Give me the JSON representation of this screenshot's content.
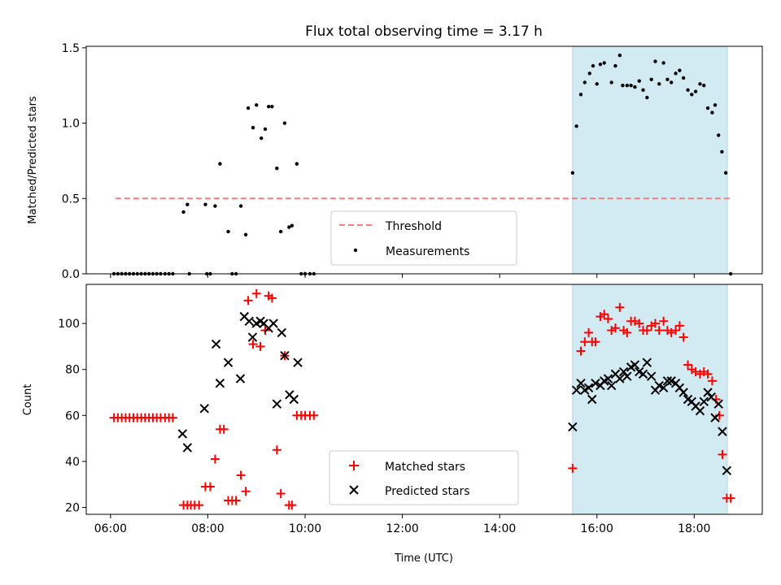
{
  "chart_data": [
    {
      "type": "scatter",
      "title": "Flux total observing time = 3.17 h",
      "xlabel": "",
      "ylabel": "Matched/Predicted stars",
      "x_unit": "hours UTC",
      "xlim": [
        5.5,
        19.4
      ],
      "ylim": [
        0,
        1.51
      ],
      "yticks": [
        "0.0",
        "0.5",
        "1.0",
        "1.5"
      ],
      "threshold": {
        "name": "Threshold",
        "value": 0.5,
        "x_range": [
          6.1,
          18.75
        ],
        "color": "#f08080"
      },
      "shaded_interval": {
        "x_range": [
          15.5,
          18.68
        ],
        "color": "#add8e6"
      },
      "legend_position": "lower center",
      "series": [
        {
          "name": "Measurements",
          "marker": "dot",
          "color": "#000000",
          "points": [
            [
              6.07,
              0.0
            ],
            [
              6.15,
              0.0
            ],
            [
              6.23,
              0.0
            ],
            [
              6.31,
              0.0
            ],
            [
              6.39,
              0.0
            ],
            [
              6.47,
              0.0
            ],
            [
              6.55,
              0.0
            ],
            [
              6.63,
              0.0
            ],
            [
              6.71,
              0.0
            ],
            [
              6.79,
              0.0
            ],
            [
              6.87,
              0.0
            ],
            [
              6.95,
              0.0
            ],
            [
              7.03,
              0.0
            ],
            [
              7.12,
              0.0
            ],
            [
              7.2,
              0.0
            ],
            [
              7.28,
              0.0
            ],
            [
              7.5,
              0.41
            ],
            [
              7.58,
              0.46
            ],
            [
              7.62,
              0.0
            ],
            [
              7.95,
              0.46
            ],
            [
              7.98,
              0.0
            ],
            [
              8.05,
              0.0
            ],
            [
              8.15,
              0.45
            ],
            [
              8.25,
              0.73
            ],
            [
              8.42,
              0.28
            ],
            [
              8.5,
              0.0
            ],
            [
              8.58,
              0.0
            ],
            [
              8.68,
              0.45
            ],
            [
              8.78,
              0.26
            ],
            [
              8.83,
              1.1
            ],
            [
              8.93,
              0.97
            ],
            [
              9.0,
              1.12
            ],
            [
              9.1,
              0.9
            ],
            [
              9.18,
              0.96
            ],
            [
              9.25,
              1.11
            ],
            [
              9.32,
              1.11
            ],
            [
              9.42,
              0.7
            ],
            [
              9.5,
              0.28
            ],
            [
              9.58,
              1.0
            ],
            [
              9.67,
              0.31
            ],
            [
              9.73,
              0.32
            ],
            [
              9.83,
              0.73
            ],
            [
              9.92,
              0.0
            ],
            [
              10.0,
              0.0
            ],
            [
              10.1,
              0.0
            ],
            [
              10.18,
              0.0
            ],
            [
              15.5,
              0.67
            ],
            [
              15.58,
              0.98
            ],
            [
              15.67,
              1.19
            ],
            [
              15.75,
              1.27
            ],
            [
              15.85,
              1.33
            ],
            [
              15.92,
              1.38
            ],
            [
              16.0,
              1.26
            ],
            [
              16.07,
              1.39
            ],
            [
              16.15,
              1.4
            ],
            [
              16.3,
              1.27
            ],
            [
              16.38,
              1.38
            ],
            [
              16.47,
              1.45
            ],
            [
              16.53,
              1.25
            ],
            [
              16.62,
              1.25
            ],
            [
              16.7,
              1.25
            ],
            [
              16.78,
              1.24
            ],
            [
              16.87,
              1.28
            ],
            [
              16.95,
              1.22
            ],
            [
              17.03,
              1.17
            ],
            [
              17.12,
              1.29
            ],
            [
              17.2,
              1.41
            ],
            [
              17.28,
              1.26
            ],
            [
              17.37,
              1.4
            ],
            [
              17.45,
              1.29
            ],
            [
              17.53,
              1.27
            ],
            [
              17.62,
              1.33
            ],
            [
              17.7,
              1.35
            ],
            [
              17.78,
              1.3
            ],
            [
              17.87,
              1.22
            ],
            [
              17.95,
              1.19
            ],
            [
              18.03,
              1.21
            ],
            [
              18.12,
              1.26
            ],
            [
              18.2,
              1.25
            ],
            [
              18.28,
              1.1
            ],
            [
              18.37,
              1.07
            ],
            [
              18.43,
              1.12
            ],
            [
              18.5,
              0.92
            ],
            [
              18.57,
              0.81
            ],
            [
              18.65,
              0.67
            ],
            [
              18.75,
              0.0
            ]
          ]
        }
      ]
    },
    {
      "type": "scatter",
      "title": "",
      "xlabel": "Time (UTC)",
      "ylabel": "Count",
      "x_unit": "hours UTC",
      "xlim": [
        5.5,
        19.4
      ],
      "ylim": [
        17,
        117
      ],
      "xticks": [
        "06:00",
        "08:00",
        "10:00",
        "12:00",
        "14:00",
        "16:00",
        "18:00"
      ],
      "yticks": [
        "20",
        "40",
        "60",
        "80",
        "100"
      ],
      "shaded_interval": {
        "x_range": [
          15.5,
          18.68
        ],
        "color": "#add8e6"
      },
      "legend_position": "lower center",
      "series": [
        {
          "name": "Matched stars",
          "marker": "plus",
          "color": "#ff0000",
          "points": [
            [
              6.07,
              59
            ],
            [
              6.15,
              59
            ],
            [
              6.23,
              59
            ],
            [
              6.31,
              59
            ],
            [
              6.39,
              59
            ],
            [
              6.47,
              59
            ],
            [
              6.55,
              59
            ],
            [
              6.63,
              59
            ],
            [
              6.71,
              59
            ],
            [
              6.79,
              59
            ],
            [
              6.87,
              59
            ],
            [
              6.95,
              59
            ],
            [
              7.03,
              59
            ],
            [
              7.12,
              59
            ],
            [
              7.2,
              59
            ],
            [
              7.28,
              59
            ],
            [
              7.5,
              21
            ],
            [
              7.58,
              21
            ],
            [
              7.65,
              21
            ],
            [
              7.73,
              21
            ],
            [
              7.82,
              21
            ],
            [
              7.95,
              29
            ],
            [
              8.05,
              29
            ],
            [
              8.15,
              41
            ],
            [
              8.25,
              54
            ],
            [
              8.33,
              54
            ],
            [
              8.42,
              23
            ],
            [
              8.5,
              23
            ],
            [
              8.58,
              23
            ],
            [
              8.68,
              34
            ],
            [
              8.78,
              27
            ],
            [
              8.83,
              110
            ],
            [
              8.93,
              91
            ],
            [
              9.0,
              113
            ],
            [
              9.08,
              90
            ],
            [
              9.18,
              97
            ],
            [
              9.25,
              112
            ],
            [
              9.32,
              111
            ],
            [
              9.42,
              45
            ],
            [
              9.5,
              26
            ],
            [
              9.58,
              86
            ],
            [
              9.67,
              21
            ],
            [
              9.73,
              21
            ],
            [
              9.83,
              60
            ],
            [
              9.92,
              60
            ],
            [
              10.0,
              60
            ],
            [
              10.1,
              60
            ],
            [
              10.18,
              60
            ],
            [
              15.5,
              37
            ],
            [
              15.67,
              88
            ],
            [
              15.75,
              92
            ],
            [
              15.83,
              96
            ],
            [
              15.9,
              92
            ],
            [
              15.97,
              92
            ],
            [
              16.07,
              103
            ],
            [
              16.15,
              104
            ],
            [
              16.23,
              102
            ],
            [
              16.3,
              97
            ],
            [
              16.38,
              98
            ],
            [
              16.47,
              107
            ],
            [
              16.55,
              97
            ],
            [
              16.62,
              96
            ],
            [
              16.7,
              101
            ],
            [
              16.78,
              101
            ],
            [
              16.87,
              100
            ],
            [
              16.95,
              97
            ],
            [
              17.03,
              97
            ],
            [
              17.12,
              99
            ],
            [
              17.2,
              100
            ],
            [
              17.28,
              97
            ],
            [
              17.37,
              101
            ],
            [
              17.45,
              97
            ],
            [
              17.53,
              96
            ],
            [
              17.62,
              97
            ],
            [
              17.7,
              99
            ],
            [
              17.78,
              94
            ],
            [
              17.87,
              82
            ],
            [
              17.95,
              80
            ],
            [
              18.03,
              79
            ],
            [
              18.12,
              78
            ],
            [
              18.2,
              79
            ],
            [
              18.28,
              78
            ],
            [
              18.37,
              75
            ],
            [
              18.45,
              67
            ],
            [
              18.52,
              60
            ],
            [
              18.58,
              43
            ],
            [
              18.67,
              24
            ],
            [
              18.75,
              24
            ]
          ]
        },
        {
          "name": "Predicted stars",
          "marker": "x",
          "color": "#000000",
          "points": [
            [
              7.48,
              52
            ],
            [
              7.58,
              46
            ],
            [
              7.93,
              63
            ],
            [
              8.17,
              91
            ],
            [
              8.25,
              74
            ],
            [
              8.42,
              83
            ],
            [
              8.67,
              76
            ],
            [
              8.75,
              103
            ],
            [
              8.85,
              101
            ],
            [
              8.92,
              94
            ],
            [
              9.0,
              100
            ],
            [
              9.08,
              101
            ],
            [
              9.15,
              100
            ],
            [
              9.25,
              98
            ],
            [
              9.35,
              100
            ],
            [
              9.42,
              65
            ],
            [
              9.52,
              96
            ],
            [
              9.58,
              86
            ],
            [
              9.68,
              69
            ],
            [
              9.77,
              67
            ],
            [
              9.85,
              83
            ],
            [
              15.5,
              55
            ],
            [
              15.58,
              71
            ],
            [
              15.67,
              74
            ],
            [
              15.75,
              71
            ],
            [
              15.83,
              72
            ],
            [
              15.9,
              67
            ],
            [
              15.97,
              74
            ],
            [
              16.07,
              73
            ],
            [
              16.15,
              75
            ],
            [
              16.23,
              76
            ],
            [
              16.3,
              73
            ],
            [
              16.38,
              78
            ],
            [
              16.47,
              76
            ],
            [
              16.55,
              79
            ],
            [
              16.62,
              77
            ],
            [
              16.7,
              81
            ],
            [
              16.78,
              82
            ],
            [
              16.87,
              79
            ],
            [
              16.95,
              78
            ],
            [
              17.03,
              83
            ],
            [
              17.12,
              77
            ],
            [
              17.2,
              71
            ],
            [
              17.28,
              73
            ],
            [
              17.37,
              72
            ],
            [
              17.45,
              75
            ],
            [
              17.53,
              75
            ],
            [
              17.62,
              74
            ],
            [
              17.7,
              72
            ],
            [
              17.78,
              70
            ],
            [
              17.87,
              67
            ],
            [
              17.95,
              66
            ],
            [
              18.03,
              64
            ],
            [
              18.12,
              62
            ],
            [
              18.2,
              66
            ],
            [
              18.28,
              70
            ],
            [
              18.35,
              68
            ],
            [
              18.43,
              59
            ],
            [
              18.5,
              65
            ],
            [
              18.58,
              53
            ],
            [
              18.67,
              36
            ]
          ]
        }
      ]
    }
  ]
}
